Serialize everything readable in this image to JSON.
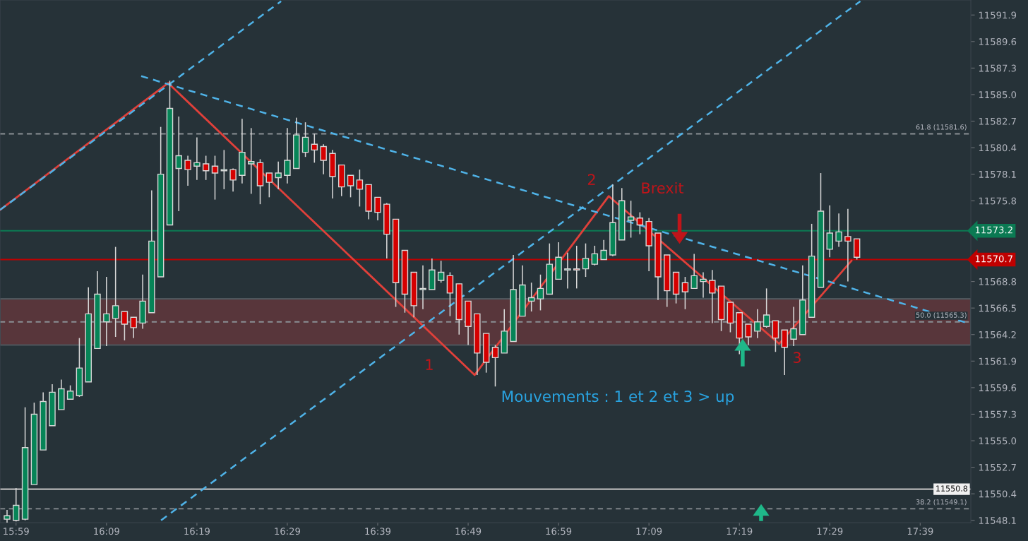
{
  "chart_data": {
    "type": "candlestick",
    "x": [
      15.9667,
      15.9833,
      16.0,
      16.0167,
      16.0333,
      16.05,
      16.0667,
      16.0833,
      16.1,
      16.1167,
      16.1333,
      16.15,
      16.1667,
      16.1833,
      16.2,
      16.2167,
      16.2333,
      16.25,
      16.2667,
      16.2833,
      16.3,
      16.3167,
      16.3333,
      16.35,
      16.3667,
      16.3833,
      16.4,
      16.4167,
      16.4333,
      16.45,
      16.4667,
      16.4833,
      16.5,
      16.5167,
      16.5333,
      16.55,
      16.5667,
      16.5833,
      16.6,
      16.6167,
      16.6333,
      16.65,
      16.6667,
      16.6833,
      16.7,
      16.7167,
      16.7333,
      16.75,
      16.7667,
      16.7833,
      16.8,
      16.8167,
      16.8333,
      16.85,
      16.8667,
      16.8833,
      16.9,
      16.9167,
      16.9333,
      16.95,
      16.9667,
      16.9833,
      17.0,
      17.0167,
      17.0333,
      17.05,
      17.0667,
      17.0833,
      17.1,
      17.1167,
      17.1333,
      17.15,
      17.1667,
      17.1833,
      17.2,
      17.2167,
      17.2333,
      17.25,
      17.2667,
      17.2833,
      17.3,
      17.3167,
      17.3333,
      17.35,
      17.3667,
      17.3833,
      17.4,
      17.4167,
      17.4333,
      17.45,
      17.4667,
      17.4833,
      17.5,
      17.5167,
      17.5333
    ],
    "ohlc": [
      [
        11548.2,
        11549.0,
        11547.9,
        11548.5
      ],
      [
        11548.1,
        11550.9,
        11548.0,
        11549.4
      ],
      [
        11548.2,
        11557.9,
        11548.1,
        11554.4
      ],
      [
        11551.2,
        11558.3,
        11551.2,
        11557.3
      ],
      [
        11554.2,
        11559.2,
        11554.2,
        11558.4
      ],
      [
        11556.3,
        11559.9,
        11556.3,
        11559.2
      ],
      [
        11557.7,
        11560.3,
        11557.7,
        11559.5
      ],
      [
        11558.6,
        11559.8,
        11558.6,
        11559.3
      ],
      [
        11558.9,
        11563.9,
        11558.8,
        11561.3
      ],
      [
        11560.1,
        11568.3,
        11560.1,
        11566.0
      ],
      [
        11563.0,
        11569.7,
        11563.0,
        11567.7
      ],
      [
        11565.3,
        11569.2,
        11563.2,
        11566.0
      ],
      [
        11565.6,
        11571.8,
        11564.0,
        11566.7
      ],
      [
        11566.2,
        11566.2,
        11563.7,
        11565.1
      ],
      [
        11565.7,
        11565.7,
        11563.9,
        11564.8
      ],
      [
        11565.2,
        11569.4,
        11564.7,
        11567.1
      ],
      [
        11566.1,
        11576.7,
        11566.1,
        11572.3
      ],
      [
        11569.2,
        11582.2,
        11569.2,
        11578.1
      ],
      [
        11573.7,
        11586.2,
        11573.7,
        11583.8
      ],
      [
        11578.6,
        11583.1,
        11574.9,
        11579.7
      ],
      [
        11579.3,
        11579.7,
        11577.1,
        11578.5
      ],
      [
        11578.8,
        11581.3,
        11577.6,
        11579.1
      ],
      [
        11579.0,
        11579.7,
        11577.6,
        11578.4
      ],
      [
        11578.8,
        11579.7,
        11575.9,
        11578.2
      ],
      [
        11578.4,
        11580.2,
        11576.8,
        11578.5
      ],
      [
        11578.5,
        11578.6,
        11576.6,
        11577.6
      ],
      [
        11578.0,
        11582.9,
        11577.3,
        11580.0
      ],
      [
        11579.0,
        11582.1,
        11576.4,
        11579.2
      ],
      [
        11579.1,
        11579.4,
        11575.5,
        11577.1
      ],
      [
        11578.2,
        11578.2,
        11576.1,
        11577.4
      ],
      [
        11577.8,
        11579.2,
        11576.8,
        11578.2
      ],
      [
        11578.0,
        11582.1,
        11577.3,
        11579.3
      ],
      [
        11578.6,
        11583.0,
        11578.6,
        11581.5
      ],
      [
        11580.0,
        11582.6,
        11579.6,
        11581.3
      ],
      [
        11580.7,
        11581.6,
        11579.1,
        11580.2
      ],
      [
        11580.5,
        11580.7,
        11578.1,
        11579.3
      ],
      [
        11579.9,
        11580.2,
        11576.0,
        11577.9
      ],
      [
        11578.9,
        11578.9,
        11576.2,
        11577.0
      ],
      [
        11578.0,
        11578.0,
        11576.1,
        11577.1
      ],
      [
        11577.6,
        11578.5,
        11575.3,
        11576.8
      ],
      [
        11577.2,
        11577.2,
        11574.2,
        11574.9
      ],
      [
        11576.1,
        11576.1,
        11574.1,
        11574.8
      ],
      [
        11575.5,
        11575.6,
        11570.8,
        11572.9
      ],
      [
        11574.2,
        11574.2,
        11566.6,
        11568.7
      ],
      [
        11571.5,
        11571.5,
        11566.1,
        11567.7
      ],
      [
        11569.6,
        11569.6,
        11565.7,
        11566.7
      ],
      [
        11568.1,
        11570.2,
        11566.4,
        11568.2
      ],
      [
        11568.1,
        11570.8,
        11568.1,
        11569.8
      ],
      [
        11568.9,
        11570.6,
        11568.7,
        11569.6
      ],
      [
        11569.3,
        11569.6,
        11565.8,
        11567.8
      ],
      [
        11568.6,
        11568.6,
        11564.2,
        11565.5
      ],
      [
        11567.1,
        11567.1,
        11563.3,
        11564.9
      ],
      [
        11566.0,
        11566.0,
        11560.7,
        11562.6
      ],
      [
        11564.3,
        11564.3,
        11560.9,
        11561.8
      ],
      [
        11563.1,
        11563.3,
        11559.7,
        11562.2
      ],
      [
        11562.6,
        11566.4,
        11562.6,
        11564.5
      ],
      [
        11563.6,
        11571.1,
        11563.6,
        11568.1
      ],
      [
        11565.8,
        11570.2,
        11565.8,
        11568.5
      ],
      [
        11567.1,
        11568.7,
        11566.2,
        11567.4
      ],
      [
        11567.3,
        11569.4,
        11566.3,
        11568.2
      ],
      [
        11567.7,
        11572.1,
        11567.7,
        11570.3
      ],
      [
        11569.0,
        11572.2,
        11569.0,
        11570.9
      ],
      [
        11569.8,
        11571.3,
        11568.2,
        11569.9
      ],
      [
        11569.9,
        11571.9,
        11568.2,
        11569.8
      ],
      [
        11569.9,
        11572.1,
        11569.2,
        11570.8
      ],
      [
        11570.3,
        11571.9,
        11570.2,
        11571.2
      ],
      [
        11570.7,
        11572.4,
        11570.7,
        11571.5
      ],
      [
        11571.1,
        11577.2,
        11571.0,
        11573.9
      ],
      [
        11572.4,
        11576.9,
        11572.4,
        11575.8
      ],
      [
        11574.1,
        11575.8,
        11572.6,
        11574.4
      ],
      [
        11574.3,
        11574.8,
        11572.9,
        11573.7
      ],
      [
        11574.0,
        11574.3,
        11569.7,
        11571.9
      ],
      [
        11573.0,
        11573.0,
        11567.2,
        11569.2
      ],
      [
        11571.1,
        11571.1,
        11566.6,
        11568.0
      ],
      [
        11569.6,
        11569.6,
        11566.9,
        11567.7
      ],
      [
        11568.7,
        11569.2,
        11566.4,
        11567.9
      ],
      [
        11568.2,
        11571.2,
        11568.2,
        11569.3
      ],
      [
        11568.8,
        11569.6,
        11567.4,
        11569.0
      ],
      [
        11568.9,
        11569.8,
        11565.2,
        11567.8
      ],
      [
        11568.4,
        11568.4,
        11564.5,
        11565.5
      ],
      [
        11567.0,
        11567.0,
        11564.4,
        11565.2
      ],
      [
        11566.1,
        11566.1,
        11562.5,
        11563.9
      ],
      [
        11565.1,
        11565.1,
        11563.3,
        11564.0
      ],
      [
        11564.5,
        11566.4,
        11563.9,
        11565.3
      ],
      [
        11564.9,
        11568.2,
        11564.8,
        11565.9
      ],
      [
        11565.4,
        11565.4,
        11562.7,
        11563.9
      ],
      [
        11564.6,
        11564.6,
        11560.7,
        11563.1
      ],
      [
        11563.8,
        11566.6,
        11563.2,
        11564.7
      ],
      [
        11564.2,
        11570.2,
        11564.2,
        11567.2
      ],
      [
        11565.7,
        11573.8,
        11565.7,
        11571.0
      ],
      [
        11568.3,
        11578.2,
        11568.3,
        11574.9
      ],
      [
        11571.6,
        11575.4,
        11570.9,
        11573.0
      ],
      [
        11572.3,
        11574.7,
        11571.8,
        11573.1
      ],
      [
        11572.7,
        11575.1,
        11568.8,
        11572.3
      ],
      [
        11572.5,
        11572.5,
        11570.7,
        11570.9
      ]
    ],
    "series": [
      {
        "type": "line",
        "color": "#e0403a",
        "line_style": "solid",
        "x": [
          15.9537,
          16.2636,
          16.8287,
          17.076,
          17.39,
          17.5233
        ],
        "values": [
          11575.0,
          11586.0,
          11560.7,
          11576.2,
          11563.4,
          11570.6
        ]
      },
      {
        "type": "line",
        "color": "#4fb3e8",
        "line_style": "dashed",
        "x": [
          15.9537,
          16.4719
        ],
        "values": [
          11575.0,
          11593.1
        ]
      },
      {
        "type": "line",
        "color": "#4fb3e8",
        "line_style": "dashed",
        "x": [
          16.2506,
          17.5397
        ],
        "values": [
          11548.1,
          11593.1
        ]
      },
      {
        "type": "line",
        "color": "#4fb3e8",
        "line_style": "dashed",
        "x": [
          16.214,
          17.7375
        ],
        "values": [
          11586.6,
          11565.2
        ]
      }
    ],
    "ref_lines": [
      {
        "axis": "y",
        "value": 11581.6,
        "label": "61.8 (11581.6)",
        "color": "#8a8f94",
        "line_style": "dashed"
      },
      {
        "axis": "y",
        "value": 11565.3,
        "label": "50.0 (11565.3)",
        "color": "#8a8f94",
        "line_style": "dashed"
      },
      {
        "axis": "y",
        "value": 11549.1,
        "label": "38.2 (11549.1)",
        "color": "#8a8f94",
        "line_style": "dashed"
      },
      {
        "axis": "y",
        "value": 11573.2,
        "label": "11573.2",
        "color": "#0b7a53",
        "line_style": "solid"
      },
      {
        "axis": "y",
        "value": 11570.7,
        "label": "11570.7",
        "color": "#c00000",
        "line_style": "solid"
      },
      {
        "axis": "y",
        "value": 11550.8,
        "label": "11550.8",
        "color": "#b8b8b8",
        "line_style": "solid"
      }
    ],
    "bands": [
      {
        "axis": "y",
        "from": 11563.3,
        "to": 11567.3,
        "color": "#7a3a3e"
      }
    ],
    "annotations": [
      "1",
      "2",
      "3",
      "Brexit",
      "Mouvements : 1 et 2 et 3 > up"
    ],
    "xlim": [
      15.9537,
      17.7433
    ],
    "ylim": [
      11547.9,
      11593.2
    ],
    "xticks": [
      {
        "value": 15.9833,
        "label": "15:59"
      },
      {
        "value": 16.15,
        "label": "16:09"
      },
      {
        "value": 16.3167,
        "label": "16:19"
      },
      {
        "value": 16.4833,
        "label": "16:29"
      },
      {
        "value": 16.65,
        "label": "16:39"
      },
      {
        "value": 16.8167,
        "label": "16:49"
      },
      {
        "value": 16.9833,
        "label": "16:59"
      },
      {
        "value": 17.15,
        "label": "17:09"
      },
      {
        "value": 17.3167,
        "label": "17:19"
      },
      {
        "value": 17.4833,
        "label": "17:29"
      },
      {
        "value": 17.65,
        "label": "17:39"
      }
    ],
    "yticks": [
      11591.9,
      11589.6,
      11587.3,
      {
        "value": 11585.0,
        "label": "11585.0"
      },
      11582.7,
      11580.4,
      11578.1,
      11575.8,
      11568.8,
      11566.5,
      11564.2,
      11561.9,
      11559.6,
      11557.3,
      {
        "value": 11555.0,
        "label": "11555.0"
      },
      11552.7,
      11550.4,
      11548.1
    ],
    "grid": false,
    "legend": false
  }
}
